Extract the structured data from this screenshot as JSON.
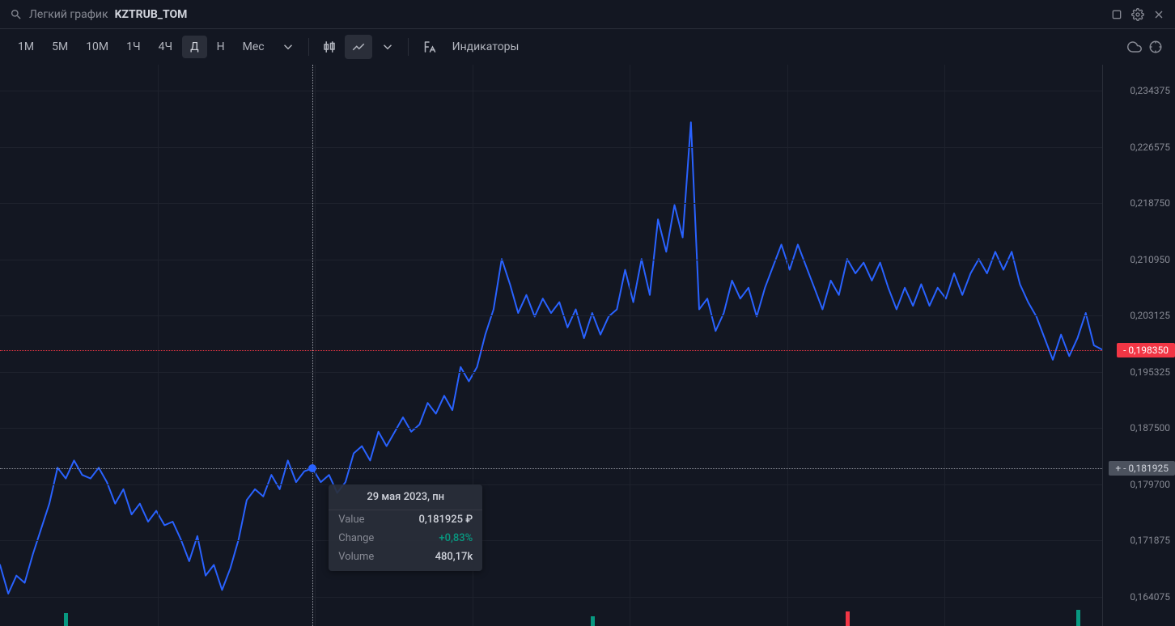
{
  "header": {
    "title_light": "Легкий график",
    "title_strong": "KZTRUB_TOM"
  },
  "toolbar": {
    "intervals": [
      "1М",
      "5М",
      "10М",
      "1Ч",
      "4Ч",
      "Д",
      "Н",
      "Мес"
    ],
    "active_interval_index": 5,
    "indicators_label": "Индикаторы"
  },
  "chart": {
    "type": "line",
    "line_color": "#2962ff",
    "line_width": 2,
    "background": "#131722",
    "grid_color": "#1e222d",
    "ylim": [
      0.16,
      0.238
    ],
    "y_ticks": [
      0.234375,
      0.226575,
      0.21875,
      0.21095,
      0.203125,
      0.195325,
      0.1875,
      0.1797,
      0.171875,
      0.164075
    ],
    "y_tick_labels": [
      "0,234375",
      "0,226575",
      "0,218750",
      "0,210950",
      "0,203125",
      "0,195325",
      "0,187500",
      "0,179700",
      "0,171875",
      "0,164075"
    ],
    "current_price": 0.19835,
    "current_price_label": "0,198350",
    "current_price_color": "#f23645",
    "cursor": {
      "x_index": 38,
      "y_value": 0.181925,
      "y_label": "0,181925",
      "dot_color": "#2962ff"
    },
    "tooltip": {
      "date": "29 мая 2023, пн",
      "rows": [
        {
          "k": "Value",
          "v": "0,181925 ₽",
          "pos": false
        },
        {
          "k": "Change",
          "v": "+0,83%",
          "pos": true
        },
        {
          "k": "Volume",
          "v": "480,17k",
          "pos": false
        }
      ]
    },
    "values": [
      0.1685,
      0.1645,
      0.167,
      0.166,
      0.17,
      0.1735,
      0.177,
      0.182,
      0.1805,
      0.183,
      0.181,
      0.1805,
      0.182,
      0.18,
      0.177,
      0.179,
      0.1755,
      0.177,
      0.1745,
      0.176,
      0.174,
      0.1745,
      0.172,
      0.169,
      0.1725,
      0.167,
      0.1685,
      0.165,
      0.168,
      0.172,
      0.1775,
      0.179,
      0.178,
      0.181,
      0.179,
      0.183,
      0.18,
      0.1815,
      0.1819,
      0.18,
      0.181,
      0.1785,
      0.18,
      0.184,
      0.185,
      0.183,
      0.187,
      0.185,
      0.187,
      0.189,
      0.187,
      0.188,
      0.191,
      0.1895,
      0.192,
      0.19,
      0.196,
      0.194,
      0.196,
      0.2005,
      0.204,
      0.211,
      0.2075,
      0.2035,
      0.206,
      0.203,
      0.2055,
      0.2035,
      0.205,
      0.2015,
      0.204,
      0.2,
      0.2035,
      0.2005,
      0.203,
      0.204,
      0.2095,
      0.205,
      0.211,
      0.206,
      0.2165,
      0.212,
      0.2185,
      0.214,
      0.23,
      0.204,
      0.2055,
      0.201,
      0.2035,
      0.208,
      0.2055,
      0.207,
      0.203,
      0.207,
      0.21,
      0.213,
      0.2095,
      0.213,
      0.21,
      0.207,
      0.204,
      0.208,
      0.206,
      0.211,
      0.209,
      0.2105,
      0.208,
      0.2105,
      0.207,
      0.204,
      0.207,
      0.2045,
      0.2075,
      0.2045,
      0.207,
      0.2055,
      0.209,
      0.206,
      0.209,
      0.211,
      0.209,
      0.212,
      0.2095,
      0.212,
      0.2075,
      0.205,
      0.203,
      0.2,
      0.197,
      0.2005,
      0.1975,
      0.2,
      0.2035,
      0.199,
      0.1984
    ],
    "volume_bars": [
      {
        "x_index": 8,
        "h": 16,
        "color": "#089981"
      },
      {
        "x_index": 72,
        "h": 12,
        "color": "#089981"
      },
      {
        "x_index": 103,
        "h": 18,
        "color": "#f23645"
      },
      {
        "x_index": 131,
        "h": 20,
        "color": "#089981"
      }
    ]
  }
}
